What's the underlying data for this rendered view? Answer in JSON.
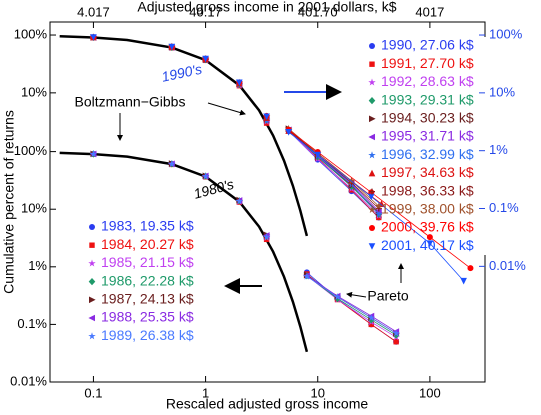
{
  "chart_data": {
    "type": "scatter",
    "xlabel": "Rescaled adjusted gross income",
    "x2label": "Adjusted gross income in 2001 dollars, k$",
    "ylabel": "Cumulative percent of returns",
    "xlim": [
      0.041,
      310
    ],
    "x2lim": [
      1.647,
      12453
    ],
    "ylim": [
      0.01,
      17800
    ],
    "y2lim": [
      0.0001,
      168
    ],
    "log_x": true,
    "log_y": true,
    "grid": false,
    "xticks": [
      0.1,
      1,
      10,
      100
    ],
    "x2ticks": [
      4.017,
      40.17,
      {
        "value": 401.7,
        "label": "401.70"
      },
      4017
    ],
    "yticks": [
      {
        "value": 0.01,
        "label": "0.01%"
      },
      {
        "value": 0.1,
        "label": "0.1%"
      },
      {
        "value": 1,
        "label": "1%"
      },
      {
        "value": 10,
        "label": "10%"
      },
      {
        "value": 100,
        "label": "100%"
      }
    ],
    "y2ticks_left": [
      {
        "value": 10,
        "label": "10%"
      },
      {
        "value": 100,
        "label": "100%"
      }
    ],
    "y2ticks": [
      {
        "value": 100,
        "label": "100%"
      },
      {
        "value": 10,
        "label": "10%"
      },
      {
        "value": 1,
        "label": "1%"
      },
      {
        "value": 0.1,
        "label": "0.1%"
      },
      {
        "value": 0.01,
        "label": "0.01%"
      }
    ],
    "y2color": "#2448e8",
    "annotations": [
      {
        "text": "1990's",
        "color": "#2448e8"
      },
      {
        "text": "1980's",
        "color": "#000000"
      },
      {
        "text": "Boltzmann−Gibbs",
        "color": "#000000"
      },
      {
        "text": "Pareto",
        "color": "#000000"
      }
    ],
    "curves": [
      {
        "color": "#000000",
        "x": [
          0.05,
          0.1,
          0.2,
          0.5,
          1,
          2,
          3,
          4,
          5,
          6,
          7,
          8
        ],
        "values": [
          95.1,
          90.5,
          81.9,
          60.7,
          36.8,
          13.5,
          4.98,
          1.83,
          0.674,
          0.248,
          0.0912,
          0.0335
        ]
      },
      {
        "color": "#000000",
        "axis": "y2",
        "x": [
          0.05,
          0.1,
          0.2,
          0.5,
          1,
          2,
          3,
          4,
          5,
          6,
          7,
          8
        ],
        "values": [
          95.1,
          90.5,
          81.9,
          60.7,
          36.8,
          13.5,
          4.98,
          1.83,
          0.674,
          0.248,
          0.0912,
          0.0335
        ]
      }
    ],
    "series": [
      {
        "name": "1983, 19.35 k$",
        "color": "#2a3cf0",
        "marker": "circle",
        "x": [
          0.1,
          0.5,
          1,
          2,
          3.5
        ],
        "values": [
          91,
          61,
          37,
          13.6,
          3.1
        ],
        "tail_x": [
          8,
          15,
          30,
          50
        ],
        "tail_values": [
          0.8,
          0.28,
          0.1,
          0.05
        ]
      },
      {
        "name": "1984, 20.27 k$",
        "color": "#ee1111",
        "marker": "square",
        "x": [
          0.1,
          0.5,
          1,
          2,
          3.5
        ],
        "values": [
          90,
          60,
          36.5,
          13.3,
          3.0
        ],
        "tail_x": [
          8,
          15,
          30,
          50
        ],
        "tail_values": [
          0.75,
          0.27,
          0.1,
          0.05
        ]
      },
      {
        "name": "1985, 21.15 k$",
        "color": "#c040f0",
        "marker": "star",
        "x": [
          0.1,
          0.5,
          1,
          2,
          3.5
        ],
        "values": [
          90.5,
          60.5,
          37,
          13.5,
          3.2
        ],
        "tail_x": [
          8,
          15,
          30,
          50
        ],
        "tail_values": [
          0.7,
          0.27,
          0.11,
          0.06
        ]
      },
      {
        "name": "1986, 22.28 k$",
        "color": "#1f9a6a",
        "marker": "diamond",
        "x": [
          0.1,
          0.5,
          1,
          2,
          3.5
        ],
        "values": [
          90.8,
          61.2,
          37.5,
          14,
          3.4
        ],
        "tail_x": [
          8,
          15,
          30,
          50
        ],
        "tail_values": [
          0.7,
          0.28,
          0.12,
          0.065
        ]
      },
      {
        "name": "1987, 24.13 k$",
        "color": "#6a1e1e",
        "marker": "triangle-right",
        "x": [
          0.1,
          0.5,
          1,
          2,
          3.5
        ],
        "values": [
          91.2,
          62,
          38,
          14.4,
          3.6
        ],
        "tail_x": [
          8,
          15,
          30,
          50
        ],
        "tail_values": [
          0.72,
          0.3,
          0.13,
          0.07
        ]
      },
      {
        "name": "1988, 25.35 k$",
        "color": "#8a2be2",
        "marker": "triangle-left",
        "x": [
          0.1,
          0.5,
          1,
          2,
          3.5
        ],
        "values": [
          91,
          61.5,
          37.8,
          14.2,
          3.5
        ],
        "tail_x": [
          8,
          15,
          30,
          50
        ],
        "tail_values": [
          0.7,
          0.31,
          0.14,
          0.075
        ]
      },
      {
        "name": "1989, 26.38 k$",
        "color": "#4a7aff",
        "marker": "star",
        "x": [
          0.1,
          0.5,
          1,
          2,
          3.5
        ],
        "values": [
          90.6,
          61,
          37.2,
          13.8,
          3.3
        ],
        "tail_x": [
          8,
          15,
          30,
          50
        ],
        "tail_values": [
          0.68,
          0.3,
          0.13,
          0.07
        ]
      },
      {
        "name": "1990, 27.06 k$",
        "color": "#2a3cf0",
        "marker": "circle",
        "axis": "y2",
        "x": [
          0.1,
          0.5,
          1,
          2,
          3.5
        ],
        "values": [
          91,
          61,
          37,
          13.6,
          3.1
        ],
        "tail_x": [
          5.5,
          10,
          20,
          35
        ],
        "tail_values": [
          2.2,
          0.7,
          0.2,
          0.07
        ]
      },
      {
        "name": "1991, 27.70 k$",
        "color": "#ee1111",
        "marker": "square",
        "axis": "y2",
        "x": [
          0.1,
          0.5,
          1,
          2,
          3.5
        ],
        "values": [
          90,
          60,
          36.5,
          13.3,
          3.0
        ],
        "tail_x": [
          5.5,
          10,
          20,
          35
        ],
        "tail_values": [
          2.3,
          0.75,
          0.21,
          0.07
        ]
      },
      {
        "name": "1992, 28.63 k$",
        "color": "#c040f0",
        "marker": "star",
        "axis": "y2",
        "x": [
          0.1,
          0.5,
          1,
          2,
          3.5
        ],
        "values": [
          90.5,
          60.5,
          37,
          13.5,
          3.2
        ],
        "tail_x": [
          5.5,
          10,
          20,
          35
        ],
        "tail_values": [
          2.2,
          0.72,
          0.22,
          0.075
        ]
      },
      {
        "name": "1993, 29.31 k$",
        "color": "#1f9a6a",
        "marker": "diamond",
        "axis": "y2",
        "x": [
          0.1,
          0.5,
          1,
          2,
          3.5
        ],
        "values": [
          90.8,
          61.2,
          37.5,
          14,
          3.4
        ],
        "tail_x": [
          5.5,
          10,
          20,
          35
        ],
        "tail_values": [
          2.3,
          0.78,
          0.24,
          0.08
        ]
      },
      {
        "name": "1994, 30.23 k$",
        "color": "#6a1e1e",
        "marker": "triangle-right",
        "axis": "y2",
        "x": [
          0.1,
          0.5,
          1,
          2,
          3.5
        ],
        "values": [
          91.2,
          62,
          38,
          14.4,
          3.6
        ],
        "tail_x": [
          5.5,
          10,
          20,
          35
        ],
        "tail_values": [
          2.4,
          0.8,
          0.25,
          0.085
        ]
      },
      {
        "name": "1995, 31.71 k$",
        "color": "#8a2be2",
        "marker": "triangle-left",
        "axis": "y2",
        "x": [
          0.1,
          0.5,
          1,
          2,
          3.5
        ],
        "values": [
          91,
          61.5,
          37.8,
          14.2,
          3.5
        ],
        "tail_x": [
          5.5,
          10,
          20,
          35
        ],
        "tail_values": [
          2.3,
          0.82,
          0.27,
          0.09
        ]
      },
      {
        "name": "1996, 32.99 k$",
        "color": "#2f6fef",
        "marker": "star",
        "axis": "y2",
        "x": [
          0.1,
          0.5,
          1,
          2,
          3.5
        ],
        "values": [
          90.6,
          61,
          37.2,
          13.8,
          3.3
        ],
        "tail_x": [
          5.5,
          10,
          20,
          35
        ],
        "tail_values": [
          2.2,
          0.8,
          0.26,
          0.08
        ]
      },
      {
        "name": "1997, 34.63 k$",
        "color": "#dd1111",
        "marker": "triangle-up",
        "axis": "y2",
        "x": [
          0.1,
          0.5,
          1,
          2,
          3.5
        ],
        "values": [
          91.4,
          62.4,
          38.4,
          14.6,
          3.7
        ],
        "tail_x": [
          5.5,
          10,
          20,
          37
        ],
        "tail_values": [
          2.2,
          0.9,
          0.3,
          0.12
        ]
      },
      {
        "name": "1998, 36.33 k$",
        "color": "#8b1a1a",
        "marker": "plus",
        "axis": "y2",
        "x": [
          0.1,
          0.5,
          1,
          2,
          3.5
        ],
        "values": [
          91.5,
          62.6,
          38.6,
          14.8,
          3.8
        ],
        "tail_x": [
          5.5,
          10,
          20,
          35
        ],
        "tail_values": [
          2.3,
          0.85,
          0.28,
          0.1
        ]
      },
      {
        "name": "1999, 38.00 k$",
        "color": "#a0522d",
        "marker": "star",
        "axis": "y2",
        "x": [
          0.1,
          0.5,
          1,
          2,
          3.5
        ],
        "values": [
          91.6,
          62.8,
          38.8,
          15,
          3.9
        ],
        "tail_x": [
          5.5,
          10,
          20,
          35
        ],
        "tail_values": [
          2.4,
          0.9,
          0.3,
          0.11
        ]
      },
      {
        "name": "2000, 39.76 k$",
        "color": "#ff0000",
        "marker": "circle",
        "axis": "y2",
        "x": [
          0.1,
          0.5,
          1,
          2,
          3.5
        ],
        "values": [
          91.8,
          63,
          39,
          15.2,
          4.0
        ],
        "tail_x": [
          5.5,
          10,
          30,
          100,
          230
        ],
        "tail_values": [
          2.3,
          0.95,
          0.19,
          0.032,
          0.0093
        ]
      },
      {
        "name": "2001, 40.17 k$",
        "color": "#1a4fff",
        "marker": "triangle-down",
        "axis": "y2",
        "x": [
          0.1,
          0.5,
          1,
          2,
          3.5
        ],
        "values": [
          91.7,
          62.8,
          38.9,
          15.1,
          3.9
        ],
        "tail_x": [
          5.5,
          10,
          30,
          100,
          200
        ],
        "tail_values": [
          2.1,
          0.85,
          0.16,
          0.025,
          0.0056
        ]
      }
    ]
  }
}
